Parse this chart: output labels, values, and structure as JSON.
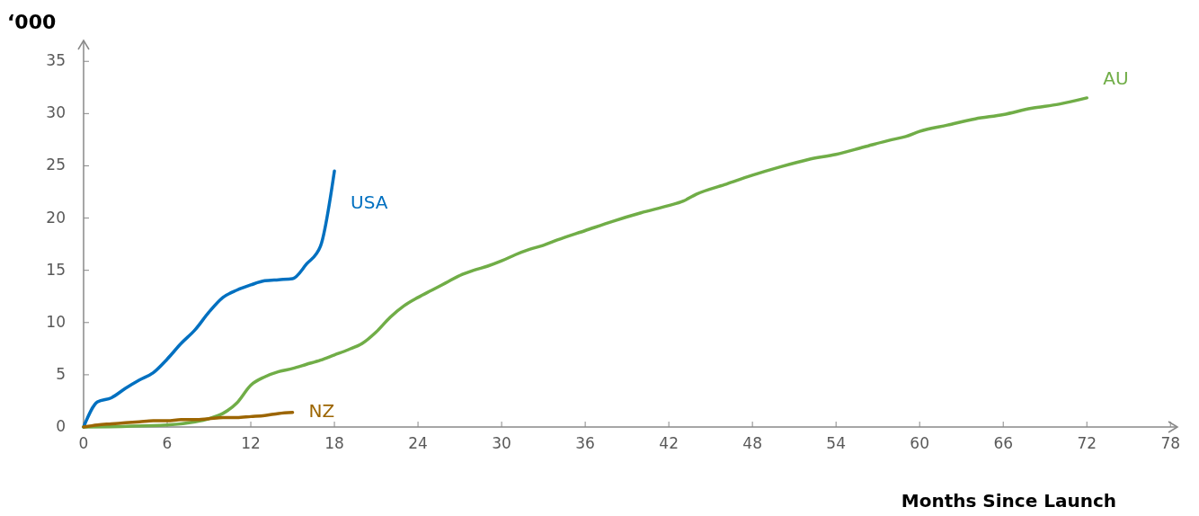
{
  "chart_data": {
    "type": "line",
    "ylabel": "‘000",
    "xlabel": "Months Since Launch",
    "xlim": [
      0,
      78.5
    ],
    "ylim": [
      0,
      37
    ],
    "xticks": [
      0,
      6,
      12,
      18,
      24,
      30,
      36,
      42,
      48,
      54,
      60,
      66,
      72,
      78
    ],
    "yticks": [
      0,
      5,
      10,
      15,
      20,
      25,
      30,
      35
    ],
    "grid": false,
    "legend": false,
    "marker": "none",
    "line_style": "solid",
    "series": [
      {
        "name": "USA",
        "color": "#0070c0",
        "x": [
          0,
          1,
          2,
          3,
          4,
          5,
          6,
          7,
          8,
          9,
          10,
          11,
          12,
          13,
          14,
          15,
          16,
          17,
          18
        ],
        "values": [
          0,
          2.4,
          2.8,
          3.7,
          4.5,
          5.2,
          6.5,
          8.0,
          9.3,
          11.0,
          12.4,
          13.1,
          13.6,
          14.0,
          14.1,
          14.2,
          15.6,
          17.3,
          24.5
        ]
      },
      {
        "name": "AU",
        "color": "#70ad47",
        "x": [
          0,
          6,
          8,
          9,
          10,
          11,
          12,
          13,
          14,
          15,
          16,
          17,
          18,
          19,
          20,
          21,
          22,
          23,
          24,
          25,
          26,
          27,
          28,
          29,
          30,
          31,
          32,
          33,
          34,
          36,
          38,
          40,
          42,
          43,
          44,
          46,
          48,
          50,
          52,
          54,
          56,
          58,
          59,
          60,
          62,
          64,
          66,
          68,
          70,
          72
        ],
        "values": [
          0,
          0.2,
          0.5,
          0.8,
          1.3,
          2.3,
          4.0,
          4.8,
          5.3,
          5.6,
          6.0,
          6.4,
          6.9,
          7.4,
          8.0,
          9.1,
          10.5,
          11.6,
          12.4,
          13.1,
          13.8,
          14.5,
          15.0,
          15.4,
          15.9,
          16.5,
          17.0,
          17.4,
          17.9,
          18.8,
          19.7,
          20.5,
          21.2,
          21.6,
          22.3,
          23.2,
          24.1,
          24.9,
          25.6,
          26.1,
          26.8,
          27.5,
          27.8,
          28.3,
          28.9,
          29.5,
          29.9,
          30.5,
          30.9,
          31.5
        ]
      },
      {
        "name": "NZ",
        "color": "#9c6500",
        "x": [
          0,
          1,
          2,
          3,
          4,
          5,
          6,
          7,
          8,
          9,
          10,
          11,
          12,
          13,
          14,
          15
        ],
        "values": [
          0,
          0.2,
          0.3,
          0.4,
          0.5,
          0.6,
          0.6,
          0.7,
          0.7,
          0.8,
          0.9,
          0.9,
          1.0,
          1.1,
          1.3,
          1.4
        ]
      }
    ]
  }
}
